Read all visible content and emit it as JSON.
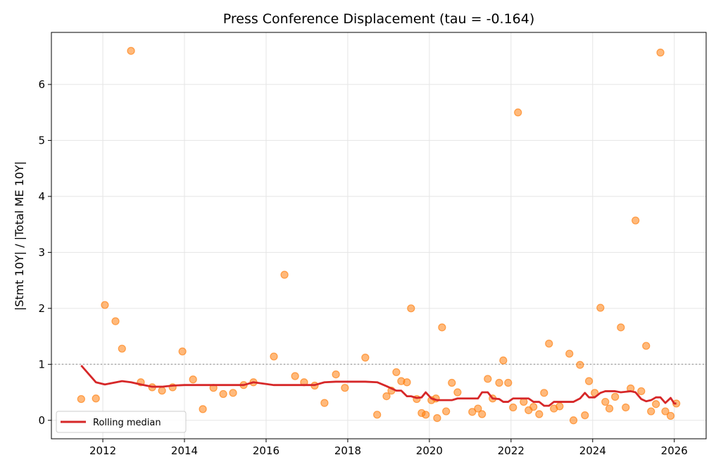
{
  "chart_data": {
    "type": "scatter",
    "title": "Press Conference Displacement (tau = -0.164)",
    "xlabel": "",
    "ylabel": "|Stmt 10Y| / |Total ME 10Y|",
    "xlim": [
      2010.74,
      2026.78
    ],
    "ylim": [
      -0.33,
      6.93
    ],
    "xticks": [
      "2012",
      "2014",
      "2016",
      "2018",
      "2020",
      "2022",
      "2024",
      "2026"
    ],
    "yticks": [
      "0",
      "1",
      "2",
      "3",
      "4",
      "5",
      "6"
    ],
    "grid": true,
    "reference_line": 1,
    "legend": {
      "placement": "lower-left",
      "entries": [
        "Rolling median"
      ]
    },
    "colors": {
      "points": "#ff7f0e",
      "median": "#d62728",
      "reference": "#aaaaaa"
    },
    "points": [
      [
        2011.47,
        0.38
      ],
      [
        2011.83,
        0.39
      ],
      [
        2012.05,
        2.06
      ],
      [
        2012.31,
        1.77
      ],
      [
        2012.47,
        1.28
      ],
      [
        2012.69,
        6.6
      ],
      [
        2012.93,
        0.68
      ],
      [
        2013.21,
        0.59
      ],
      [
        2013.45,
        0.53
      ],
      [
        2013.71,
        0.59
      ],
      [
        2013.95,
        1.23
      ],
      [
        2014.21,
        0.73
      ],
      [
        2014.45,
        0.2
      ],
      [
        2014.71,
        0.58
      ],
      [
        2014.95,
        0.47
      ],
      [
        2015.19,
        0.49
      ],
      [
        2015.45,
        0.63
      ],
      [
        2015.69,
        0.68
      ],
      [
        2016.19,
        1.14
      ],
      [
        2016.45,
        2.6
      ],
      [
        2016.71,
        0.79
      ],
      [
        2016.93,
        0.68
      ],
      [
        2017.19,
        0.62
      ],
      [
        2017.43,
        0.31
      ],
      [
        2017.71,
        0.82
      ],
      [
        2017.93,
        0.58
      ],
      [
        2018.43,
        1.12
      ],
      [
        2018.72,
        0.1
      ],
      [
        2018.95,
        0.43
      ],
      [
        2019.07,
        0.53
      ],
      [
        2019.19,
        0.86
      ],
      [
        2019.31,
        0.7
      ],
      [
        2019.45,
        0.68
      ],
      [
        2019.55,
        2.0
      ],
      [
        2019.69,
        0.38
      ],
      [
        2019.81,
        0.13
      ],
      [
        2019.91,
        0.1
      ],
      [
        2020.05,
        0.36
      ],
      [
        2020.16,
        0.39
      ],
      [
        2020.19,
        0.04
      ],
      [
        2020.31,
        1.66
      ],
      [
        2020.41,
        0.16
      ],
      [
        2020.55,
        0.67
      ],
      [
        2020.69,
        0.5
      ],
      [
        2021.05,
        0.15
      ],
      [
        2021.19,
        0.21
      ],
      [
        2021.29,
        0.11
      ],
      [
        2021.43,
        0.74
      ],
      [
        2021.55,
        0.39
      ],
      [
        2021.71,
        0.67
      ],
      [
        2021.81,
        1.07
      ],
      [
        2021.93,
        0.67
      ],
      [
        2022.05,
        0.23
      ],
      [
        2022.17,
        5.5
      ],
      [
        2022.31,
        0.33
      ],
      [
        2022.43,
        0.18
      ],
      [
        2022.55,
        0.24
      ],
      [
        2022.69,
        0.11
      ],
      [
        2022.81,
        0.49
      ],
      [
        2022.93,
        1.37
      ],
      [
        2023.05,
        0.21
      ],
      [
        2023.19,
        0.25
      ],
      [
        2023.43,
        1.19
      ],
      [
        2023.53,
        0.0
      ],
      [
        2023.69,
        0.99
      ],
      [
        2023.81,
        0.09
      ],
      [
        2023.91,
        0.7
      ],
      [
        2024.05,
        0.49
      ],
      [
        2024.19,
        2.01
      ],
      [
        2024.31,
        0.33
      ],
      [
        2024.41,
        0.21
      ],
      [
        2024.55,
        0.42
      ],
      [
        2024.69,
        1.66
      ],
      [
        2024.81,
        0.23
      ],
      [
        2024.93,
        0.57
      ],
      [
        2025.05,
        3.57
      ],
      [
        2025.19,
        0.52
      ],
      [
        2025.31,
        1.33
      ],
      [
        2025.43,
        0.16
      ],
      [
        2025.55,
        0.29
      ],
      [
        2025.66,
        6.57
      ],
      [
        2025.78,
        0.16
      ],
      [
        2025.91,
        0.08
      ],
      [
        2026.05,
        0.3
      ]
    ],
    "series": [
      {
        "name": "Rolling median",
        "values": [
          [
            2011.47,
            0.98
          ],
          [
            2011.83,
            0.68
          ],
          [
            2012.05,
            0.64
          ],
          [
            2012.47,
            0.7
          ],
          [
            2012.69,
            0.68
          ],
          [
            2012.93,
            0.64
          ],
          [
            2013.21,
            0.6
          ],
          [
            2013.45,
            0.6
          ],
          [
            2013.71,
            0.62
          ],
          [
            2014.0,
            0.63
          ],
          [
            2015.45,
            0.63
          ],
          [
            2015.69,
            0.68
          ],
          [
            2016.19,
            0.63
          ],
          [
            2017.19,
            0.63
          ],
          [
            2017.43,
            0.68
          ],
          [
            2017.71,
            0.69
          ],
          [
            2018.43,
            0.69
          ],
          [
            2018.72,
            0.68
          ],
          [
            2018.95,
            0.61
          ],
          [
            2019.19,
            0.53
          ],
          [
            2019.31,
            0.53
          ],
          [
            2019.45,
            0.43
          ],
          [
            2019.55,
            0.43
          ],
          [
            2019.69,
            0.4
          ],
          [
            2019.81,
            0.41
          ],
          [
            2019.91,
            0.5
          ],
          [
            2020.05,
            0.39
          ],
          [
            2020.19,
            0.36
          ],
          [
            2020.55,
            0.36
          ],
          [
            2020.69,
            0.39
          ],
          [
            2021.19,
            0.39
          ],
          [
            2021.29,
            0.5
          ],
          [
            2021.43,
            0.5
          ],
          [
            2021.55,
            0.39
          ],
          [
            2021.71,
            0.38
          ],
          [
            2021.81,
            0.33
          ],
          [
            2021.93,
            0.33
          ],
          [
            2022.05,
            0.39
          ],
          [
            2022.43,
            0.39
          ],
          [
            2022.55,
            0.33
          ],
          [
            2022.69,
            0.33
          ],
          [
            2022.81,
            0.26
          ],
          [
            2022.93,
            0.26
          ],
          [
            2023.05,
            0.33
          ],
          [
            2023.53,
            0.33
          ],
          [
            2023.69,
            0.39
          ],
          [
            2023.81,
            0.49
          ],
          [
            2023.91,
            0.41
          ],
          [
            2024.05,
            0.41
          ],
          [
            2024.19,
            0.49
          ],
          [
            2024.31,
            0.52
          ],
          [
            2024.55,
            0.52
          ],
          [
            2024.69,
            0.5
          ],
          [
            2024.93,
            0.52
          ],
          [
            2025.05,
            0.5
          ],
          [
            2025.19,
            0.38
          ],
          [
            2025.31,
            0.34
          ],
          [
            2025.43,
            0.36
          ],
          [
            2025.55,
            0.41
          ],
          [
            2025.66,
            0.41
          ],
          [
            2025.78,
            0.31
          ],
          [
            2025.91,
            0.4
          ],
          [
            2026.0,
            0.3
          ],
          [
            2026.05,
            0.3
          ]
        ]
      }
    ]
  }
}
